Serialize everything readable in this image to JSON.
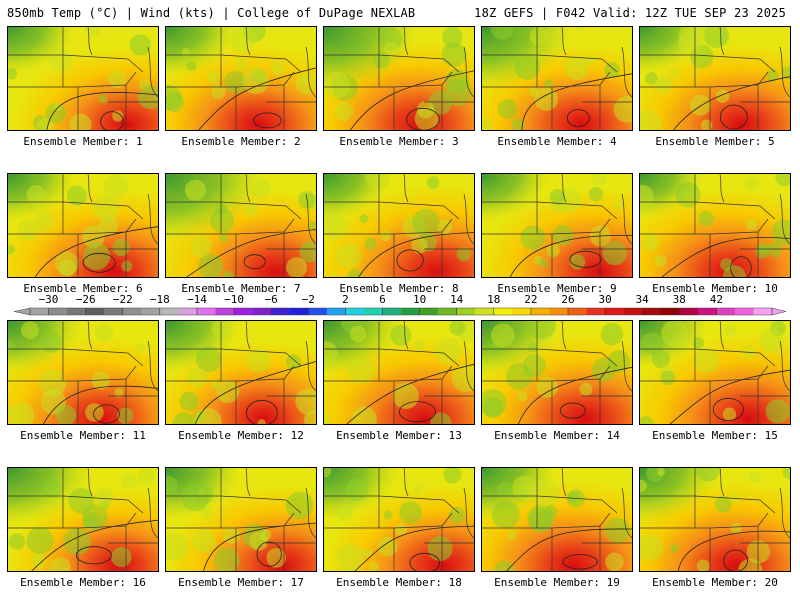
{
  "header": {
    "left": "850mb Temp (°C) | Wind (kts) | College of DuPage NEXLAB",
    "right": "18Z GEFS | F042 Valid: 12Z TUE SEP 23 2025"
  },
  "panels": [
    {
      "label": "Ensemble Member: 1",
      "hot": 0.45,
      "cool": 0.3
    },
    {
      "label": "Ensemble Member: 2",
      "hot": 0.55,
      "cool": 0.35
    },
    {
      "label": "Ensemble Member: 3",
      "hot": 0.75,
      "cool": 0.65
    },
    {
      "label": "Ensemble Member: 4",
      "hot": 0.55,
      "cool": 0.6
    },
    {
      "label": "Ensemble Member: 5",
      "hot": 0.6,
      "cool": 0.3
    },
    {
      "label": "Ensemble Member: 6",
      "hot": 0.7,
      "cool": 0.3
    },
    {
      "label": "Ensemble Member: 7",
      "hot": 0.65,
      "cool": 0.7
    },
    {
      "label": "Ensemble Member: 8",
      "hot": 0.9,
      "cool": 0.3
    },
    {
      "label": "Ensemble Member: 9",
      "hot": 0.75,
      "cool": 0.3
    },
    {
      "label": "Ensemble Member: 10",
      "hot": 0.7,
      "cool": 0.25
    },
    {
      "label": "Ensemble Member: 11",
      "hot": 0.6,
      "cool": 0.4
    },
    {
      "label": "Ensemble Member: 12",
      "hot": 0.45,
      "cool": 0.4
    },
    {
      "label": "Ensemble Member: 13",
      "hot": 0.7,
      "cool": 0.45
    },
    {
      "label": "Ensemble Member: 14",
      "hot": 0.75,
      "cool": 0.45
    },
    {
      "label": "Ensemble Member: 15",
      "hot": 0.75,
      "cool": 0.3
    },
    {
      "label": "Ensemble Member: 16",
      "hot": 0.4,
      "cool": 0.5
    },
    {
      "label": "Ensemble Member: 17",
      "hot": 0.55,
      "cool": 0.4
    },
    {
      "label": "Ensemble Member: 18",
      "hot": 0.6,
      "cool": 0.4
    },
    {
      "label": "Ensemble Member: 19",
      "hot": 0.8,
      "cool": 0.4
    },
    {
      "label": "Ensemble Member: 20",
      "hot": 0.75,
      "cool": 0.45
    }
  ],
  "colorbar": {
    "tick_labels": [
      "−30",
      "−26",
      "−22",
      "−18",
      "−14",
      "−10",
      "−6",
      "−2",
      "2",
      "6",
      "10",
      "14",
      "18",
      "22",
      "26",
      "30",
      "34",
      "38",
      "42"
    ],
    "colors": [
      "#a4a4a4",
      "#8c8c8c",
      "#767676",
      "#5e5e5e",
      "#7a7a7a",
      "#909090",
      "#a2a2a2",
      "#b8b8b8",
      "#d8a0e0",
      "#e070f0",
      "#c040e0",
      "#a020e0",
      "#8020d0",
      "#4020d0",
      "#2020e0",
      "#2050f0",
      "#20a0f0",
      "#20d0e0",
      "#20d0b0",
      "#20b080",
      "#20a040",
      "#40a020",
      "#70b820",
      "#a0d020",
      "#d0e020",
      "#f0f000",
      "#f8d800",
      "#f8b000",
      "#f89000",
      "#f06010",
      "#e83020",
      "#e01818",
      "#c81010",
      "#a80808",
      "#900000",
      "#b00040",
      "#d01080",
      "#e040c0",
      "#f060e0",
      "#f8a0f0"
    ]
  }
}
